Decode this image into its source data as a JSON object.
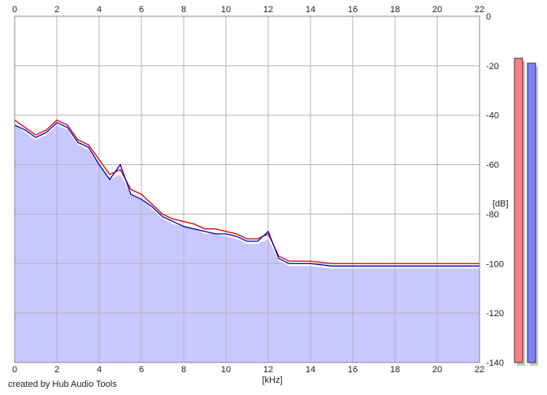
{
  "chart_data": {
    "type": "line",
    "xlabel": "[kHz]",
    "ylabel": "[dB]",
    "xlim": [
      0,
      22
    ],
    "ylim": [
      -140,
      0
    ],
    "x_ticks": [
      0,
      2,
      4,
      6,
      8,
      10,
      12,
      14,
      16,
      18,
      20,
      22
    ],
    "y_ticks": [
      0,
      -20,
      -40,
      -60,
      -80,
      -100,
      -120,
      -140
    ],
    "grid": true,
    "fill_color": "#c8c8ff",
    "series": [
      {
        "color": "#dd0000",
        "x": [
          0,
          0.5,
          1,
          1.5,
          2,
          2.5,
          3,
          3.5,
          4,
          4.5,
          5,
          5.5,
          6,
          6.5,
          7,
          7.5,
          8,
          8.5,
          9,
          9.5,
          10,
          10.5,
          11,
          11.5,
          12,
          12.5,
          13,
          14,
          15,
          16,
          17,
          18,
          19,
          20,
          21,
          22
        ],
        "y": [
          -42,
          -45,
          -48,
          -46,
          -42,
          -44,
          -50,
          -52,
          -58,
          -64,
          -62,
          -70,
          -72,
          -76,
          -80,
          -82,
          -83,
          -84,
          -86,
          -86,
          -87,
          -88,
          -90,
          -90,
          -88,
          -97,
          -99,
          -99,
          -100,
          -100,
          -100,
          -100,
          -100,
          -100,
          -100,
          -100
        ]
      },
      {
        "color": "#0000cc",
        "x": [
          0,
          0.5,
          1,
          1.5,
          2,
          2.5,
          3,
          3.5,
          4,
          4.5,
          5,
          5.5,
          6,
          6.5,
          7,
          7.5,
          8,
          8.5,
          9,
          9.5,
          10,
          10.5,
          11,
          11.5,
          12,
          12.5,
          13,
          14,
          15,
          16,
          17,
          18,
          19,
          20,
          21,
          22
        ],
        "y": [
          -44,
          -46,
          -49,
          -47,
          -43,
          -45,
          -51,
          -53,
          -60,
          -66,
          -60,
          -72,
          -74,
          -77,
          -81,
          -83,
          -85,
          -86,
          -87,
          -88,
          -88,
          -89,
          -91,
          -91,
          -87,
          -98,
          -100,
          -100,
          -101,
          -101,
          -101,
          -101,
          -101,
          -101,
          -101,
          -101
        ]
      }
    ],
    "meters": {
      "left": {
        "level_db": -17,
        "color": "#ff8080"
      },
      "right": {
        "level_db": -19,
        "color": "#8080ff"
      }
    }
  },
  "footer": {
    "credit": "created by Hub Audio Tools"
  }
}
